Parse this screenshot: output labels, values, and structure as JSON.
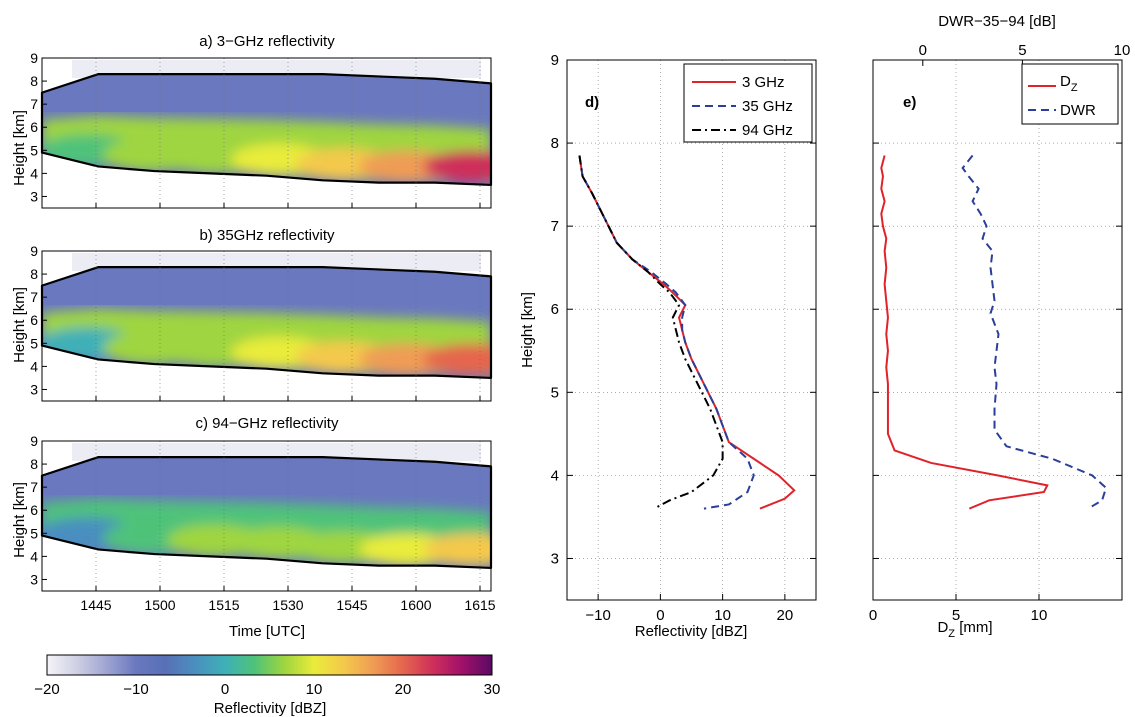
{
  "colors": {
    "colormap": [
      "#f4f4f8",
      "#cfd0e4",
      "#9fa5d2",
      "#6a78bf",
      "#5870b6",
      "#4a8fbf",
      "#3fb0b7",
      "#4fc27a",
      "#9fd53f",
      "#e9ec3a",
      "#f4c94b",
      "#ef9c54",
      "#e5664e",
      "#cf2f5a",
      "#a0106a",
      "#5a0a63"
    ],
    "red": "#e0222a",
    "blue": "#2b3f9a",
    "black": "#000000"
  },
  "panels": {
    "a": {
      "title": "a) 3−GHz reflectivity",
      "ylabel": "Height [km]",
      "yticks": [
        "9",
        "8",
        "7",
        "6",
        "5",
        "4",
        "3"
      ]
    },
    "b": {
      "title": "b) 35GHz reflectivity",
      "ylabel": "Height [km]",
      "yticks": [
        "9",
        "8",
        "7",
        "6",
        "5",
        "4",
        "3"
      ]
    },
    "c": {
      "title": "c) 94−GHz reflectivity",
      "ylabel": "Height [km]",
      "yticks": [
        "9",
        "8",
        "7",
        "6",
        "5",
        "4",
        "3"
      ],
      "xticks": [
        "1445",
        "1500",
        "1515",
        "1530",
        "1545",
        "1600",
        "1615"
      ],
      "xlabel": "Time [UTC]"
    }
  },
  "colorbar": {
    "ticks": [
      "−20",
      "−10",
      "0",
      "10",
      "20",
      "30"
    ],
    "label": "Reflectivity [dBZ]",
    "range": [
      -20,
      30
    ]
  },
  "chart_data": [
    {
      "type": "heatmap",
      "title": "a) 3−GHz reflectivity",
      "xlabel": "",
      "ylabel": "Height [km]",
      "x_ticks": [
        "1445",
        "1500",
        "1515",
        "1530",
        "1545",
        "1600",
        "1615"
      ],
      "ylim": [
        2.5,
        9
      ],
      "colorbar": {
        "label": "Reflectivity [dBZ]",
        "range": [
          -20,
          30
        ]
      },
      "cloud_base_km": [
        4.9,
        4.3,
        4.1,
        4.0,
        3.9,
        3.7,
        3.6,
        3.6,
        3.5
      ],
      "cloud_top_km": [
        7.5,
        8.3,
        8.3,
        8.3,
        8.3,
        8.3,
        8.2,
        8.1,
        7.9
      ],
      "core_dbz_at_4km": [
        2,
        8,
        8,
        10,
        14,
        18,
        24
      ]
    },
    {
      "type": "heatmap",
      "title": "b) 35GHz reflectivity",
      "xlabel": "",
      "ylabel": "Height [km]",
      "x_ticks": [
        "1445",
        "1500",
        "1515",
        "1530",
        "1545",
        "1600",
        "1615"
      ],
      "ylim": [
        2.5,
        9
      ],
      "colorbar": {
        "label": "Reflectivity [dBZ]",
        "range": [
          -20,
          30
        ]
      },
      "cloud_base_km": [
        4.9,
        4.3,
        4.1,
        4.0,
        3.9,
        3.7,
        3.6,
        3.6,
        3.5
      ],
      "cloud_top_km": [
        7.5,
        8.3,
        8.3,
        8.3,
        8.3,
        8.3,
        8.2,
        8.1,
        7.9
      ],
      "core_dbz_at_4km": [
        0,
        6,
        7,
        9,
        12,
        15,
        19
      ]
    },
    {
      "type": "heatmap",
      "title": "c) 94−GHz reflectivity",
      "xlabel": "Time [UTC]",
      "ylabel": "Height [km]",
      "x_ticks": [
        "1445",
        "1500",
        "1515",
        "1530",
        "1545",
        "1600",
        "1615"
      ],
      "ylim": [
        2.5,
        9
      ],
      "colorbar": {
        "label": "Reflectivity [dBZ]",
        "range": [
          -20,
          30
        ]
      },
      "cloud_base_km": [
        4.9,
        4.3,
        4.1,
        4.0,
        3.9,
        3.7,
        3.6,
        3.6,
        3.5
      ],
      "cloud_top_km": [
        7.5,
        8.3,
        8.3,
        8.3,
        8.3,
        8.3,
        8.2,
        8.1,
        7.9
      ],
      "core_dbz_at_4km": [
        -2,
        4,
        5,
        6,
        8,
        10,
        12
      ]
    },
    {
      "type": "line",
      "panel_label": "d)",
      "xlabel": "Reflectivity [dBZ]",
      "ylabel": "Height [km]",
      "xlim": [
        -15,
        25
      ],
      "ylim": [
        2.5,
        9
      ],
      "xticks": [
        "−10",
        "0",
        "10",
        "20"
      ],
      "yticks": [
        "3",
        "4",
        "5",
        "6",
        "7",
        "8",
        "9"
      ],
      "grid": true,
      "legend_position": "top-right",
      "series": [
        {
          "name": "3 GHz",
          "style": "solid",
          "color": "#e0222a",
          "points": [
            [
              -13,
              7.85
            ],
            [
              -12.5,
              7.6
            ],
            [
              -11,
              7.4
            ],
            [
              -9,
              7.1
            ],
            [
              -7,
              6.8
            ],
            [
              -4.5,
              6.6
            ],
            [
              -2,
              6.45
            ],
            [
              0.5,
              6.3
            ],
            [
              2,
              6.2
            ],
            [
              4,
              6.05
            ],
            [
              3,
              5.9
            ],
            [
              3.5,
              5.75
            ],
            [
              4,
              5.6
            ],
            [
              5,
              5.4
            ],
            [
              7,
              5.1
            ],
            [
              9,
              4.8
            ],
            [
              10,
              4.6
            ],
            [
              11,
              4.4
            ],
            [
              15,
              4.2
            ],
            [
              19,
              4.0
            ],
            [
              21.5,
              3.82
            ],
            [
              20,
              3.72
            ],
            [
              16,
              3.6
            ]
          ]
        },
        {
          "name": "35 GHz",
          "style": "dashed",
          "color": "#2b3f9a",
          "points": [
            [
              -13,
              7.85
            ],
            [
              -12.5,
              7.6
            ],
            [
              -11,
              7.4
            ],
            [
              -9,
              7.1
            ],
            [
              -7,
              6.8
            ],
            [
              -4.5,
              6.6
            ],
            [
              -1.5,
              6.45
            ],
            [
              1,
              6.3
            ],
            [
              2.5,
              6.2
            ],
            [
              4,
              6.05
            ],
            [
              3.5,
              5.9
            ],
            [
              3.5,
              5.75
            ],
            [
              4,
              5.6
            ],
            [
              5,
              5.4
            ],
            [
              7,
              5.1
            ],
            [
              9,
              4.8
            ],
            [
              10,
              4.6
            ],
            [
              11,
              4.4
            ],
            [
              14,
              4.2
            ],
            [
              15,
              4.0
            ],
            [
              14,
              3.8
            ],
            [
              11,
              3.65
            ],
            [
              7,
              3.6
            ]
          ]
        },
        {
          "name": "94 GHz",
          "style": "dash-dot",
          "color": "#000000",
          "points": [
            [
              -13,
              7.85
            ],
            [
              -12.5,
              7.6
            ],
            [
              -11,
              7.4
            ],
            [
              -9,
              7.1
            ],
            [
              -7,
              6.8
            ],
            [
              -4.5,
              6.6
            ],
            [
              -2,
              6.45
            ],
            [
              0,
              6.3
            ],
            [
              1.5,
              6.2
            ],
            [
              3,
              6.05
            ],
            [
              2,
              5.9
            ],
            [
              2.5,
              5.75
            ],
            [
              3,
              5.6
            ],
            [
              4,
              5.4
            ],
            [
              6,
              5.1
            ],
            [
              8,
              4.8
            ],
            [
              9,
              4.6
            ],
            [
              10,
              4.4
            ],
            [
              10,
              4.2
            ],
            [
              8.5,
              4.0
            ],
            [
              5,
              3.8
            ],
            [
              1.5,
              3.7
            ],
            [
              -1,
              3.6
            ]
          ]
        }
      ]
    },
    {
      "type": "line",
      "panel_label": "e)",
      "xlabel": "D_Z [mm]",
      "x2label": "DWR−35−94 [dB]",
      "ylabel": "",
      "xlim": [
        0,
        15
      ],
      "x2lim": [
        -2.5,
        10
      ],
      "ylim": [
        2.5,
        9
      ],
      "xticks": [
        "0",
        "5",
        "10"
      ],
      "x2ticks": [
        "0",
        "5",
        "10"
      ],
      "yticks": [
        "3",
        "4",
        "5",
        "6",
        "7",
        "8",
        "9"
      ],
      "grid": true,
      "legend_position": "top-right",
      "legend_main": "D",
      "legend_sub": "Z",
      "series": [
        {
          "name": "D_Z",
          "style": "solid",
          "color": "#e0222a",
          "axis": "bottom",
          "points": [
            [
              0.7,
              7.85
            ],
            [
              0.5,
              7.7
            ],
            [
              0.6,
              7.6
            ],
            [
              0.5,
              7.45
            ],
            [
              0.7,
              7.3
            ],
            [
              0.5,
              7.15
            ],
            [
              0.6,
              7.0
            ],
            [
              0.8,
              6.85
            ],
            [
              0.7,
              6.7
            ],
            [
              0.8,
              6.5
            ],
            [
              0.7,
              6.3
            ],
            [
              0.8,
              6.1
            ],
            [
              0.9,
              5.9
            ],
            [
              0.8,
              5.7
            ],
            [
              0.9,
              5.5
            ],
            [
              0.8,
              5.3
            ],
            [
              0.9,
              5.1
            ],
            [
              0.9,
              4.8
            ],
            [
              0.9,
              4.5
            ],
            [
              1.3,
              4.3
            ],
            [
              3.5,
              4.15
            ],
            [
              7.5,
              4.0
            ],
            [
              10.5,
              3.88
            ],
            [
              10.3,
              3.8
            ],
            [
              7,
              3.7
            ],
            [
              5.8,
              3.6
            ]
          ]
        },
        {
          "name": "DWR",
          "style": "dashed",
          "color": "#2b3f9a",
          "axis": "top",
          "points": [
            [
              2.5,
              7.85
            ],
            [
              2,
              7.7
            ],
            [
              2.3,
              7.6
            ],
            [
              2.8,
              7.45
            ],
            [
              2.5,
              7.3
            ],
            [
              2.9,
              7.15
            ],
            [
              3.2,
              7.0
            ],
            [
              3,
              6.85
            ],
            [
              3.5,
              6.7
            ],
            [
              3.4,
              6.5
            ],
            [
              3.5,
              6.3
            ],
            [
              3.6,
              6.1
            ],
            [
              3.4,
              5.95
            ],
            [
              3.8,
              5.7
            ],
            [
              3.7,
              5.5
            ],
            [
              3.6,
              5.3
            ],
            [
              3.7,
              5.1
            ],
            [
              3.6,
              4.8
            ],
            [
              3.6,
              4.55
            ],
            [
              4.2,
              4.35
            ],
            [
              6.5,
              4.2
            ],
            [
              8.5,
              4.0
            ],
            [
              9.2,
              3.85
            ],
            [
              9,
              3.7
            ],
            [
              8.3,
              3.6
            ]
          ]
        }
      ]
    }
  ],
  "dz_axis_label": "D",
  "dz_axis_sub": "Z",
  "dz_axis_unit": "[mm]"
}
